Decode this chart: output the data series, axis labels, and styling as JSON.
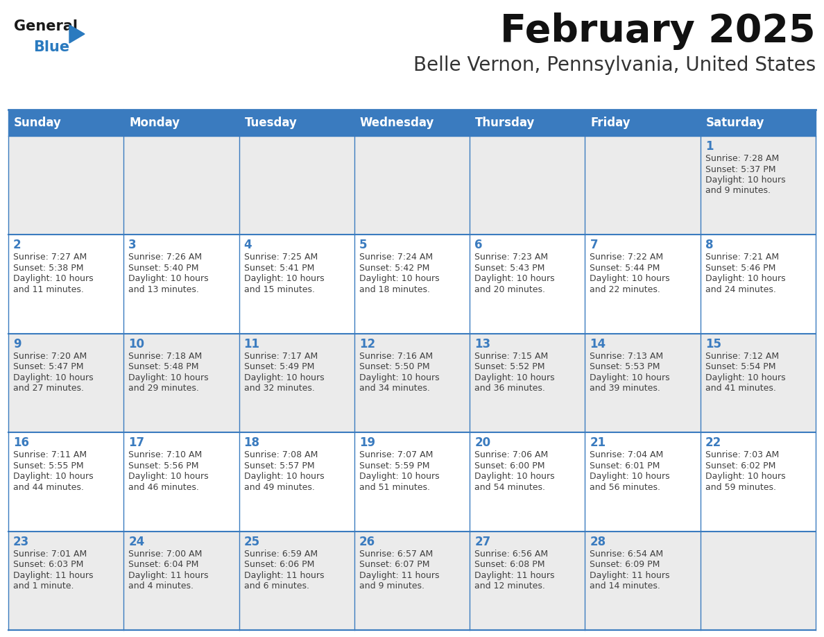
{
  "title": "February 2025",
  "subtitle": "Belle Vernon, Pennsylvania, United States",
  "days_of_week": [
    "Sunday",
    "Monday",
    "Tuesday",
    "Wednesday",
    "Thursday",
    "Friday",
    "Saturday"
  ],
  "header_bg": "#3a7bbf",
  "header_text": "#ffffff",
  "cell_bg_white": "#ffffff",
  "cell_bg_gray": "#ebebeb",
  "border_color": "#3a7bbf",
  "day_num_color": "#3a7bbf",
  "text_color": "#404040",
  "logo_general_color": "#1a1a1a",
  "logo_blue_color": "#2a7abf",
  "weeks": [
    [
      null,
      null,
      null,
      null,
      null,
      null,
      1
    ],
    [
      2,
      3,
      4,
      5,
      6,
      7,
      8
    ],
    [
      9,
      10,
      11,
      12,
      13,
      14,
      15
    ],
    [
      16,
      17,
      18,
      19,
      20,
      21,
      22
    ],
    [
      23,
      24,
      25,
      26,
      27,
      28,
      null
    ]
  ],
  "cell_data": {
    "1": [
      "Sunrise: 7:28 AM",
      "Sunset: 5:37 PM",
      "Daylight: 10 hours",
      "and 9 minutes."
    ],
    "2": [
      "Sunrise: 7:27 AM",
      "Sunset: 5:38 PM",
      "Daylight: 10 hours",
      "and 11 minutes."
    ],
    "3": [
      "Sunrise: 7:26 AM",
      "Sunset: 5:40 PM",
      "Daylight: 10 hours",
      "and 13 minutes."
    ],
    "4": [
      "Sunrise: 7:25 AM",
      "Sunset: 5:41 PM",
      "Daylight: 10 hours",
      "and 15 minutes."
    ],
    "5": [
      "Sunrise: 7:24 AM",
      "Sunset: 5:42 PM",
      "Daylight: 10 hours",
      "and 18 minutes."
    ],
    "6": [
      "Sunrise: 7:23 AM",
      "Sunset: 5:43 PM",
      "Daylight: 10 hours",
      "and 20 minutes."
    ],
    "7": [
      "Sunrise: 7:22 AM",
      "Sunset: 5:44 PM",
      "Daylight: 10 hours",
      "and 22 minutes."
    ],
    "8": [
      "Sunrise: 7:21 AM",
      "Sunset: 5:46 PM",
      "Daylight: 10 hours",
      "and 24 minutes."
    ],
    "9": [
      "Sunrise: 7:20 AM",
      "Sunset: 5:47 PM",
      "Daylight: 10 hours",
      "and 27 minutes."
    ],
    "10": [
      "Sunrise: 7:18 AM",
      "Sunset: 5:48 PM",
      "Daylight: 10 hours",
      "and 29 minutes."
    ],
    "11": [
      "Sunrise: 7:17 AM",
      "Sunset: 5:49 PM",
      "Daylight: 10 hours",
      "and 32 minutes."
    ],
    "12": [
      "Sunrise: 7:16 AM",
      "Sunset: 5:50 PM",
      "Daylight: 10 hours",
      "and 34 minutes."
    ],
    "13": [
      "Sunrise: 7:15 AM",
      "Sunset: 5:52 PM",
      "Daylight: 10 hours",
      "and 36 minutes."
    ],
    "14": [
      "Sunrise: 7:13 AM",
      "Sunset: 5:53 PM",
      "Daylight: 10 hours",
      "and 39 minutes."
    ],
    "15": [
      "Sunrise: 7:12 AM",
      "Sunset: 5:54 PM",
      "Daylight: 10 hours",
      "and 41 minutes."
    ],
    "16": [
      "Sunrise: 7:11 AM",
      "Sunset: 5:55 PM",
      "Daylight: 10 hours",
      "and 44 minutes."
    ],
    "17": [
      "Sunrise: 7:10 AM",
      "Sunset: 5:56 PM",
      "Daylight: 10 hours",
      "and 46 minutes."
    ],
    "18": [
      "Sunrise: 7:08 AM",
      "Sunset: 5:57 PM",
      "Daylight: 10 hours",
      "and 49 minutes."
    ],
    "19": [
      "Sunrise: 7:07 AM",
      "Sunset: 5:59 PM",
      "Daylight: 10 hours",
      "and 51 minutes."
    ],
    "20": [
      "Sunrise: 7:06 AM",
      "Sunset: 6:00 PM",
      "Daylight: 10 hours",
      "and 54 minutes."
    ],
    "21": [
      "Sunrise: 7:04 AM",
      "Sunset: 6:01 PM",
      "Daylight: 10 hours",
      "and 56 minutes."
    ],
    "22": [
      "Sunrise: 7:03 AM",
      "Sunset: 6:02 PM",
      "Daylight: 10 hours",
      "and 59 minutes."
    ],
    "23": [
      "Sunrise: 7:01 AM",
      "Sunset: 6:03 PM",
      "Daylight: 11 hours",
      "and 1 minute."
    ],
    "24": [
      "Sunrise: 7:00 AM",
      "Sunset: 6:04 PM",
      "Daylight: 11 hours",
      "and 4 minutes."
    ],
    "25": [
      "Sunrise: 6:59 AM",
      "Sunset: 6:06 PM",
      "Daylight: 11 hours",
      "and 6 minutes."
    ],
    "26": [
      "Sunrise: 6:57 AM",
      "Sunset: 6:07 PM",
      "Daylight: 11 hours",
      "and 9 minutes."
    ],
    "27": [
      "Sunrise: 6:56 AM",
      "Sunset: 6:08 PM",
      "Daylight: 11 hours",
      "and 12 minutes."
    ],
    "28": [
      "Sunrise: 6:54 AM",
      "Sunset: 6:09 PM",
      "Daylight: 11 hours",
      "and 14 minutes."
    ]
  }
}
